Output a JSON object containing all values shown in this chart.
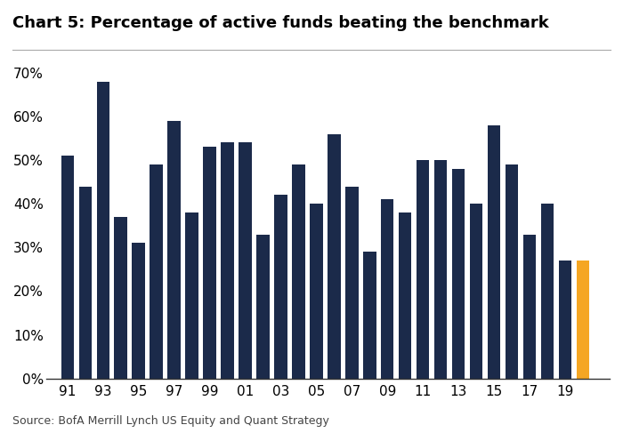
{
  "title": "Chart 5: Percentage of active funds beating the benchmark",
  "source": "Source: BofA Merrill Lynch US Equity and Quant Strategy",
  "years": [
    1991,
    1992,
    1993,
    1994,
    1995,
    1996,
    1997,
    1998,
    1999,
    2000,
    2001,
    2002,
    2003,
    2004,
    2005,
    2006,
    2007,
    2008,
    2009,
    2010,
    2011,
    2012,
    2013,
    2014,
    2015,
    2016,
    2017,
    2018,
    2019,
    2020
  ],
  "values": [
    0.51,
    0.44,
    0.68,
    0.37,
    0.31,
    0.49,
    0.59,
    0.38,
    0.53,
    0.54,
    0.54,
    0.33,
    0.42,
    0.49,
    0.4,
    0.56,
    0.44,
    0.29,
    0.41,
    0.38,
    0.5,
    0.5,
    0.48,
    0.4,
    0.58,
    0.49,
    0.33,
    0.4,
    0.27,
    0.27
  ],
  "bar_colors_navy": "#1b2a4a",
  "bar_color_orange": "#f5a623",
  "ylim": [
    0,
    0.7
  ],
  "yticks": [
    0.0,
    0.1,
    0.2,
    0.3,
    0.4,
    0.5,
    0.6,
    0.7
  ],
  "xtick_labels": [
    "91",
    "93",
    "95",
    "97",
    "99",
    "01",
    "03",
    "05",
    "07",
    "09",
    "11",
    "13",
    "15",
    "17",
    "19"
  ],
  "xtick_positions": [
    1991,
    1993,
    1995,
    1997,
    1999,
    2001,
    2003,
    2005,
    2007,
    2009,
    2011,
    2013,
    2015,
    2017,
    2019
  ],
  "title_fontsize": 13,
  "tick_fontsize": 11,
  "source_fontsize": 9,
  "background_color": "#ffffff",
  "bar_width": 0.72
}
